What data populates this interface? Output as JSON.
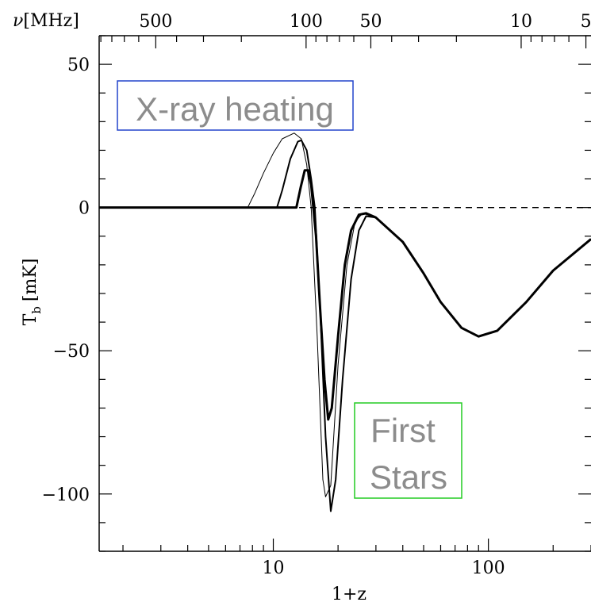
{
  "chart_data": {
    "type": "line",
    "xlabel": "1+z",
    "ylabel": "T_b [mK]",
    "ylabel_main": "T",
    "ylabel_sub": "b",
    "ylabel_unit": "[mK]",
    "xscale": "log",
    "xlim": [
      1.55,
      300
    ],
    "ylim": [
      -120,
      60
    ],
    "x_ticks": [
      {
        "value": 10,
        "label": "10"
      },
      {
        "value": 100,
        "label": "100"
      }
    ],
    "y_ticks": [
      {
        "value": 50,
        "label": "50"
      },
      {
        "value": 0,
        "label": "0"
      },
      {
        "value": -50,
        "label": "−50"
      },
      {
        "value": -100,
        "label": "−100"
      }
    ],
    "top_axis": {
      "label": "ν[MHz]",
      "symbol": "ν",
      "unit": "[MHz]",
      "ticks": [
        {
          "value": 500,
          "label": "500"
        },
        {
          "value": 100,
          "label": "100"
        },
        {
          "value": 50,
          "label": "50"
        },
        {
          "value": 10,
          "label": "10"
        },
        {
          "value": 5,
          "label": "5"
        }
      ]
    },
    "zero_line": {
      "y": 0,
      "style": "dashed"
    },
    "series": [
      {
        "weight": "thin",
        "points": [
          [
            1.55,
            0
          ],
          [
            7.6,
            0
          ],
          [
            8.2,
            5
          ],
          [
            9.0,
            12
          ],
          [
            10.0,
            19
          ],
          [
            11.0,
            24
          ],
          [
            12.5,
            26
          ],
          [
            13.5,
            24
          ],
          [
            14.3,
            15
          ],
          [
            15.0,
            0
          ],
          [
            16.0,
            -45
          ],
          [
            17.0,
            -95
          ],
          [
            17.5,
            -101
          ],
          [
            18.5,
            -97
          ],
          [
            20.0,
            -55
          ],
          [
            22.0,
            -20
          ],
          [
            24.0,
            -5
          ],
          [
            26.0,
            -2
          ],
          [
            30.0,
            -3.5
          ],
          [
            40.0,
            -12
          ],
          [
            50.0,
            -23
          ],
          [
            60.0,
            -33
          ],
          [
            75.0,
            -42
          ],
          [
            90.0,
            -45
          ],
          [
            110.0,
            -43
          ],
          [
            150.0,
            -33
          ],
          [
            200.0,
            -22
          ],
          [
            300.0,
            -11
          ]
        ]
      },
      {
        "weight": "medium",
        "points": [
          [
            1.55,
            0
          ],
          [
            10.4,
            0
          ],
          [
            11.0,
            6
          ],
          [
            12.0,
            17
          ],
          [
            13.0,
            23
          ],
          [
            13.5,
            23.5
          ],
          [
            14.3,
            20
          ],
          [
            15.0,
            10
          ],
          [
            15.6,
            0
          ],
          [
            16.5,
            -35
          ],
          [
            17.5,
            -80
          ],
          [
            18.5,
            -106
          ],
          [
            19.5,
            -95
          ],
          [
            21.0,
            -60
          ],
          [
            23.0,
            -25
          ],
          [
            25.0,
            -8
          ],
          [
            27.0,
            -3
          ],
          [
            30.0,
            -3.5
          ],
          [
            40.0,
            -12
          ],
          [
            50.0,
            -23
          ],
          [
            60.0,
            -33
          ],
          [
            75.0,
            -42
          ],
          [
            90.0,
            -45
          ],
          [
            110.0,
            -43
          ],
          [
            150.0,
            -33
          ],
          [
            200.0,
            -22
          ],
          [
            300.0,
            -11
          ]
        ]
      },
      {
        "weight": "thick",
        "points": [
          [
            1.55,
            0
          ],
          [
            12.8,
            0
          ],
          [
            13.4,
            7
          ],
          [
            14.0,
            13
          ],
          [
            14.5,
            13
          ],
          [
            15.0,
            8
          ],
          [
            15.8,
            -10
          ],
          [
            16.5,
            -35
          ],
          [
            17.3,
            -60
          ],
          [
            18.0,
            -74
          ],
          [
            18.7,
            -70
          ],
          [
            20.0,
            -45
          ],
          [
            21.5,
            -20
          ],
          [
            23.0,
            -8
          ],
          [
            25.0,
            -2.5
          ],
          [
            27.0,
            -2
          ],
          [
            30.0,
            -3.5
          ],
          [
            40.0,
            -12
          ],
          [
            50.0,
            -23
          ],
          [
            60.0,
            -33
          ],
          [
            75.0,
            -42
          ],
          [
            90.0,
            -45
          ],
          [
            110.0,
            -43
          ],
          [
            150.0,
            -33
          ],
          [
            200.0,
            -22
          ],
          [
            300.0,
            -11
          ]
        ]
      }
    ],
    "annotations": [
      {
        "text": "X-ray heating",
        "box_color": "#2244cc"
      },
      {
        "text": "First",
        "text2": "Stars",
        "box_color": "#22cc22"
      }
    ]
  }
}
